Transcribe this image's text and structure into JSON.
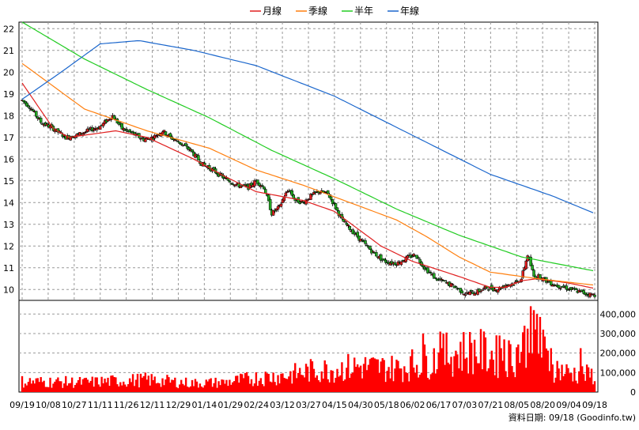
{
  "chart_data": {
    "type": "candlestick",
    "legend": [
      {
        "name": "月線",
        "color": "#e02020"
      },
      {
        "name": "季線",
        "color": "#ff7f0e"
      },
      {
        "name": "半年",
        "color": "#22cc22"
      },
      {
        "name": "年線",
        "color": "#1a66cc"
      }
    ],
    "price_axis": {
      "ticks": [
        "22",
        "21",
        "20",
        "19",
        "18",
        "17",
        "16",
        "15",
        "14",
        "13",
        "12",
        "11",
        "10"
      ],
      "range": [
        9.5,
        22.3
      ]
    },
    "volume_axis": {
      "ticks": [
        "400,000",
        "300,000",
        "200,000",
        "100,000",
        "0"
      ],
      "range": [
        0,
        470000
      ]
    },
    "x_tick_labels": [
      "09/19",
      "10/08",
      "10/27",
      "11/11",
      "11/26",
      "12/11",
      "12/29",
      "01/14",
      "01/29",
      "02/24",
      "03/12",
      "03/27",
      "04/15",
      "04/30",
      "05/18",
      "06/02",
      "06/17",
      "07/03",
      "07/21",
      "08/05",
      "08/20",
      "09/04",
      "09/18"
    ],
    "source": "資料日期: 09/18  (Goodinfo.tw)",
    "colors": {
      "up": "#e02020",
      "down": "#22aa22",
      "volume": "#ff0000"
    },
    "moving_averages": {
      "月線": [
        [
          0,
          19.5
        ],
        [
          20,
          17.4
        ],
        [
          30,
          17.0
        ],
        [
          60,
          17.3
        ],
        [
          80,
          17.0
        ],
        [
          110,
          16.0
        ],
        [
          130,
          15.2
        ],
        [
          150,
          14.5
        ],
        [
          180,
          14.1
        ],
        [
          200,
          13.6
        ],
        [
          230,
          12.0
        ],
        [
          250,
          11.3
        ],
        [
          280,
          10.6
        ],
        [
          300,
          10.1
        ],
        [
          310,
          10.1
        ],
        [
          320,
          10.4
        ],
        [
          330,
          10.5
        ],
        [
          350,
          10.3
        ],
        [
          367,
          10.05
        ]
      ],
      "季線": [
        [
          0,
          20.4
        ],
        [
          40,
          18.3
        ],
        [
          80,
          17.3
        ],
        [
          120,
          16.5
        ],
        [
          150,
          15.5
        ],
        [
          180,
          14.8
        ],
        [
          210,
          14.0
        ],
        [
          240,
          13.2
        ],
        [
          260,
          12.4
        ],
        [
          280,
          11.5
        ],
        [
          300,
          10.8
        ],
        [
          330,
          10.5
        ],
        [
          367,
          10.2
        ]
      ],
      "半年": [
        [
          0,
          22.3
        ],
        [
          40,
          20.6
        ],
        [
          80,
          19.2
        ],
        [
          120,
          17.9
        ],
        [
          160,
          16.4
        ],
        [
          200,
          15.1
        ],
        [
          240,
          13.7
        ],
        [
          280,
          12.5
        ],
        [
          320,
          11.5
        ],
        [
          367,
          10.85
        ]
      ],
      "年線": [
        [
          0,
          18.75
        ],
        [
          25,
          20.0
        ],
        [
          50,
          21.3
        ],
        [
          75,
          21.45
        ],
        [
          110,
          21.0
        ],
        [
          150,
          20.3
        ],
        [
          200,
          18.9
        ],
        [
          250,
          17.1
        ],
        [
          300,
          15.3
        ],
        [
          340,
          14.3
        ],
        [
          367,
          13.5
        ]
      ]
    },
    "anchors": [
      [
        0,
        18.7
      ],
      [
        5,
        18.4
      ],
      [
        12,
        17.7
      ],
      [
        20,
        17.4
      ],
      [
        28,
        17.0
      ],
      [
        35,
        17.1
      ],
      [
        42,
        17.3
      ],
      [
        50,
        17.5
      ],
      [
        58,
        18.0
      ],
      [
        64,
        17.4
      ],
      [
        70,
        17.2
      ],
      [
        78,
        16.9
      ],
      [
        84,
        17.0
      ],
      [
        90,
        17.3
      ],
      [
        95,
        17.0
      ],
      [
        100,
        16.8
      ],
      [
        108,
        16.4
      ],
      [
        115,
        15.8
      ],
      [
        122,
        15.5
      ],
      [
        130,
        15.1
      ],
      [
        138,
        14.8
      ],
      [
        145,
        14.7
      ],
      [
        150,
        15.0
      ],
      [
        155,
        14.7
      ],
      [
        158,
        14.0
      ],
      [
        160,
        13.5
      ],
      [
        165,
        13.8
      ],
      [
        168,
        14.3
      ],
      [
        171,
        14.6
      ],
      [
        175,
        14.1
      ],
      [
        180,
        14.0
      ],
      [
        185,
        14.3
      ],
      [
        190,
        14.5
      ],
      [
        196,
        14.4
      ],
      [
        200,
        13.9
      ],
      [
        205,
        13.2
      ],
      [
        210,
        12.8
      ],
      [
        218,
        12.2
      ],
      [
        225,
        11.7
      ],
      [
        232,
        11.3
      ],
      [
        240,
        11.2
      ],
      [
        248,
        11.5
      ],
      [
        252,
        11.6
      ],
      [
        258,
        11.0
      ],
      [
        265,
        10.5
      ],
      [
        272,
        10.3
      ],
      [
        278,
        10.1
      ],
      [
        284,
        9.8
      ],
      [
        292,
        9.9
      ],
      [
        298,
        10.1
      ],
      [
        304,
        10.0
      ],
      [
        310,
        10.2
      ],
      [
        316,
        10.3
      ],
      [
        320,
        10.5
      ],
      [
        324,
        11.6
      ],
      [
        328,
        10.6
      ],
      [
        332,
        10.6
      ],
      [
        336,
        10.4
      ],
      [
        342,
        10.2
      ],
      [
        348,
        10.1
      ],
      [
        352,
        10.0
      ],
      [
        357,
        9.9
      ],
      [
        362,
        9.8
      ],
      [
        367,
        9.75
      ]
    ],
    "volume_anchors": [
      [
        0,
        60000
      ],
      [
        40,
        55000
      ],
      [
        80,
        70000
      ],
      [
        110,
        50000
      ],
      [
        130,
        55000
      ],
      [
        150,
        80000
      ],
      [
        170,
        95000
      ],
      [
        185,
        120000
      ],
      [
        200,
        130000
      ],
      [
        215,
        145000
      ],
      [
        240,
        135000
      ],
      [
        260,
        180000
      ],
      [
        275,
        220000
      ],
      [
        290,
        235000
      ],
      [
        305,
        200000
      ],
      [
        315,
        200000
      ],
      [
        323,
        310000
      ],
      [
        330,
        280000
      ],
      [
        340,
        140000
      ],
      [
        350,
        110000
      ],
      [
        360,
        100000
      ],
      [
        367,
        95000
      ]
    ],
    "volume_spikes": [
      [
        257,
        300000
      ],
      [
        268,
        310000
      ],
      [
        272,
        305000
      ],
      [
        306,
        290000
      ],
      [
        309,
        270000
      ],
      [
        312,
        265000
      ],
      [
        322,
        340000
      ],
      [
        324,
        325000
      ],
      [
        326,
        440000
      ],
      [
        328,
        420000
      ],
      [
        330,
        400000
      ],
      [
        332,
        385000
      ],
      [
        334,
        320000
      ],
      [
        339,
        225000
      ],
      [
        358,
        225000
      ]
    ]
  }
}
